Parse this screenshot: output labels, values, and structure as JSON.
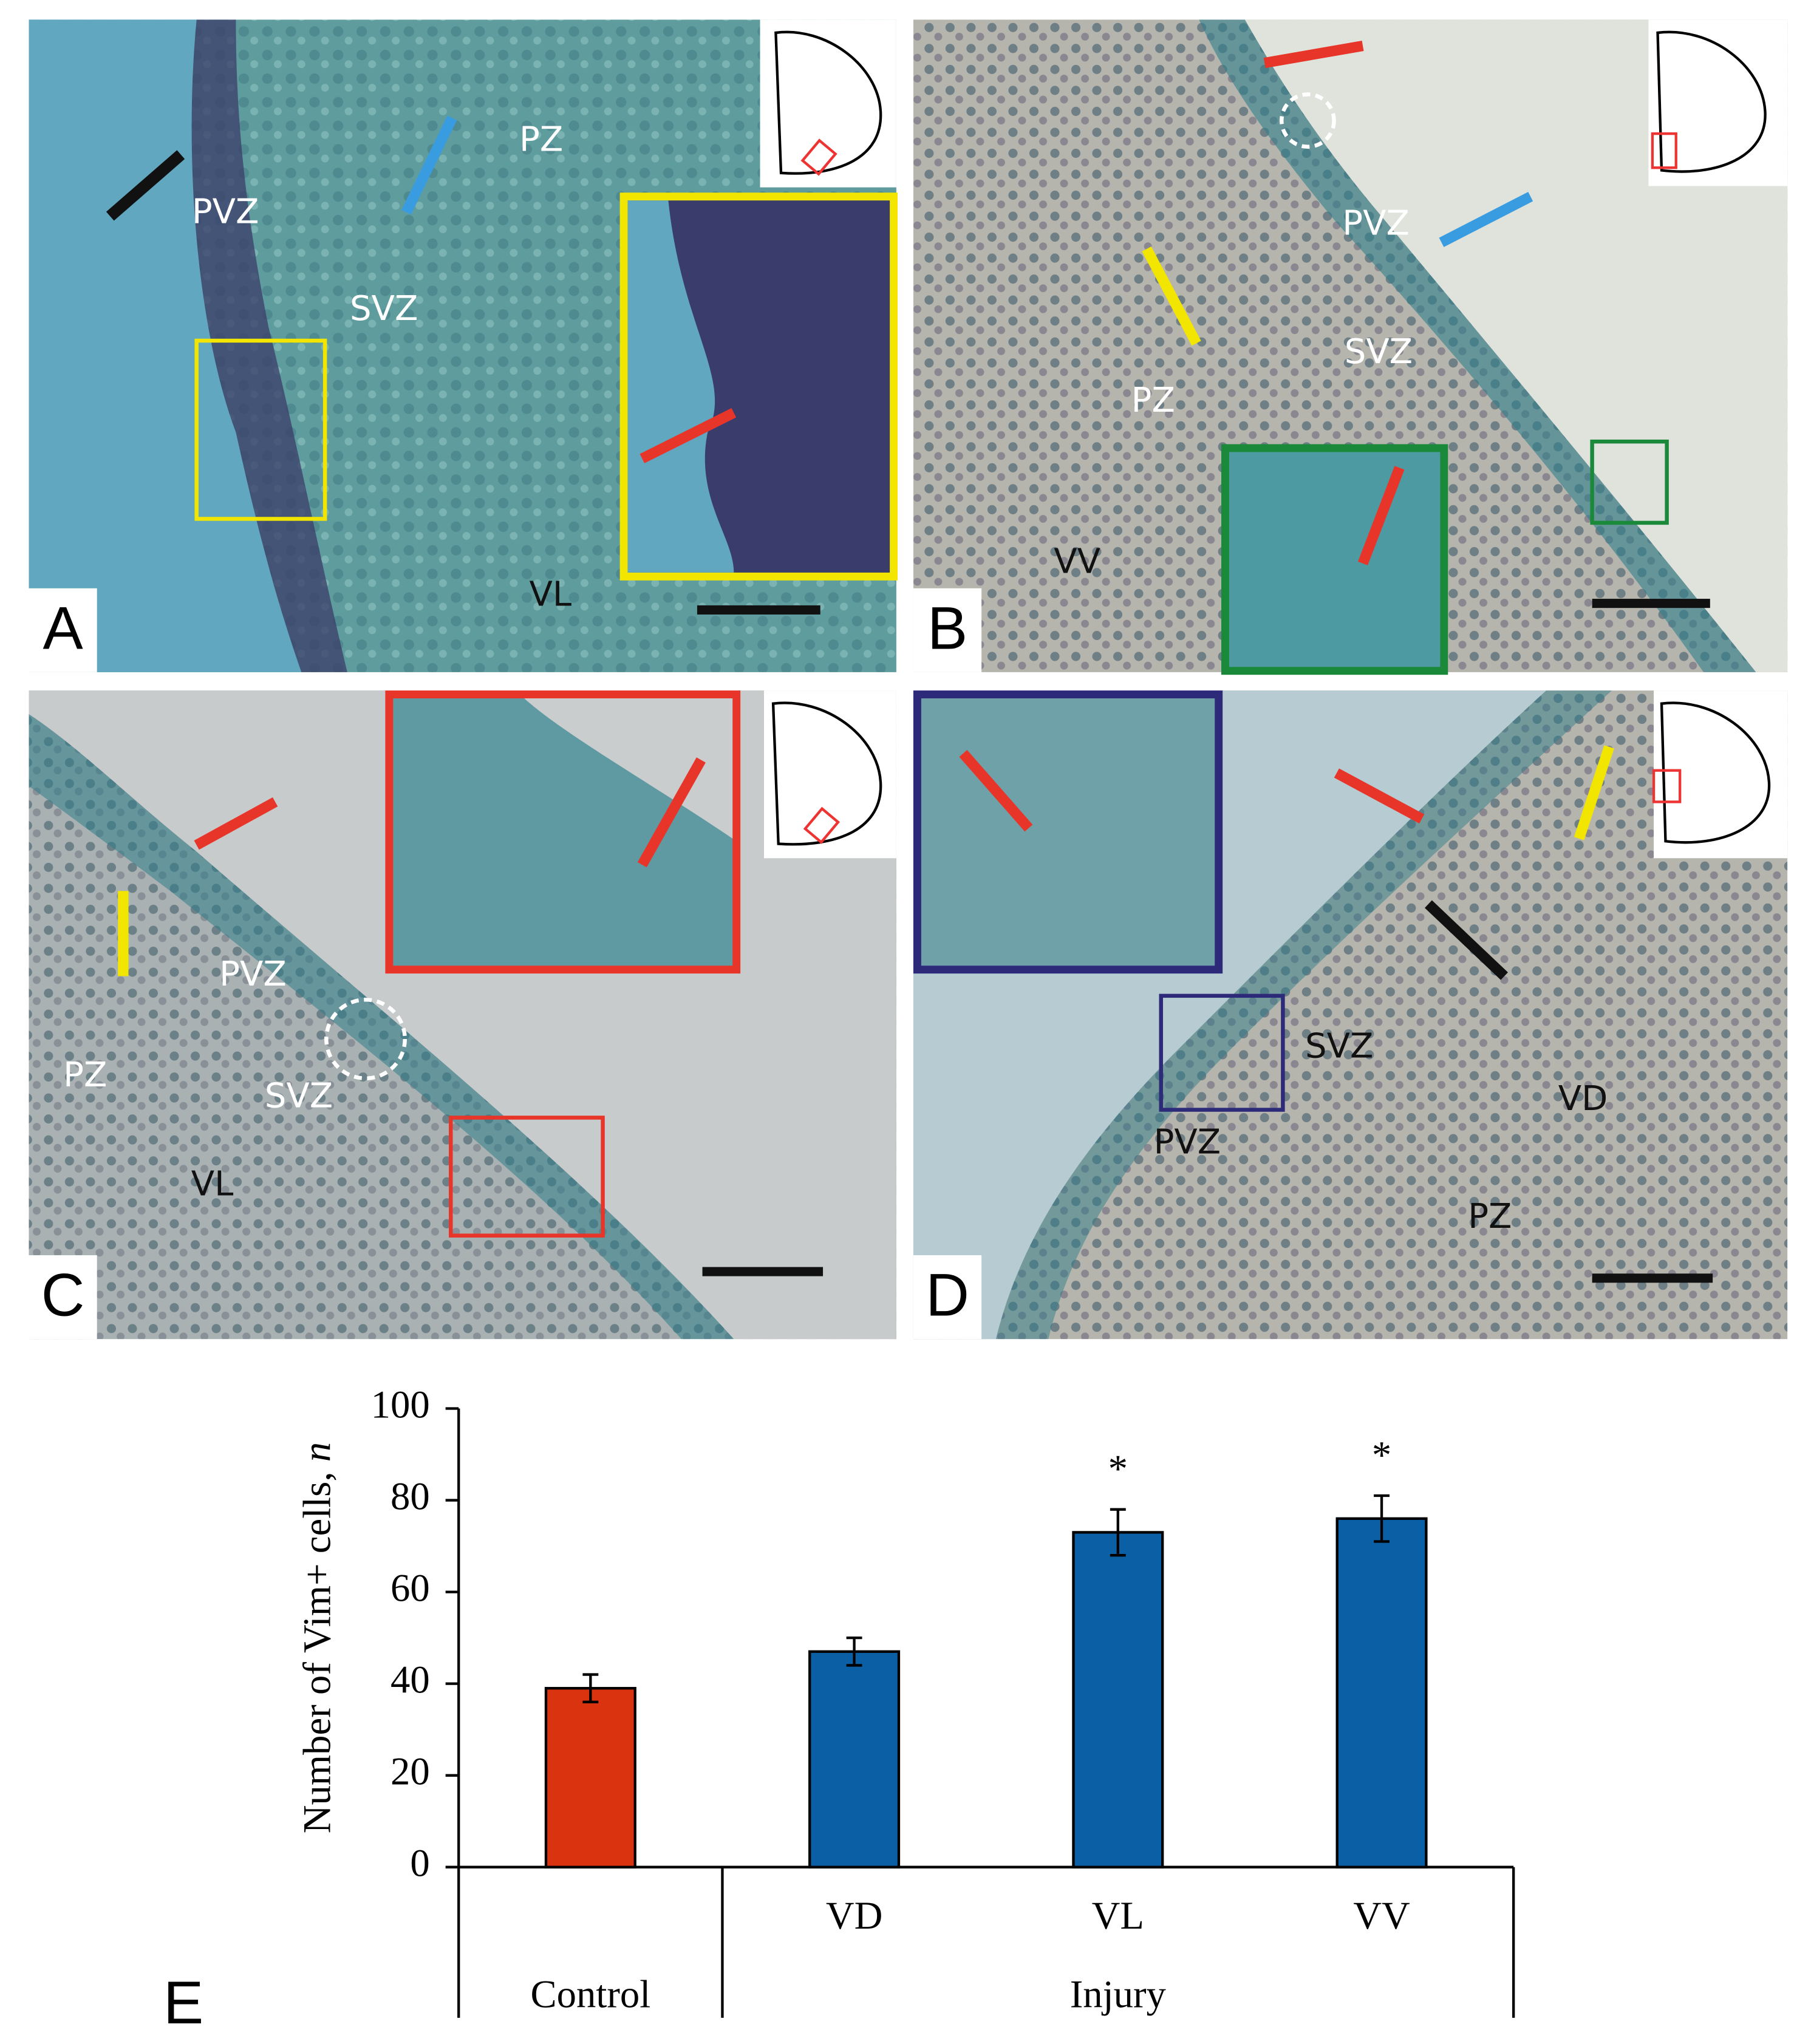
{
  "panels": [
    {
      "letter": "A",
      "labels": [
        "PVZ",
        "PZ",
        "SVZ",
        "VL"
      ]
    },
    {
      "letter": "B",
      "labels": [
        "PVZ",
        "SVZ",
        "PZ",
        "VV"
      ]
    },
    {
      "letter": "C",
      "labels": [
        "PVZ",
        "PZ",
        "SVZ",
        "VL"
      ]
    },
    {
      "letter": "D",
      "labels": [
        "SVZ",
        "VD",
        "PVZ",
        "PZ"
      ]
    }
  ],
  "chart_data": {
    "type": "bar",
    "panel": "E",
    "ylabel": [
      "Number of Vim+ cells,",
      "n"
    ],
    "categories": [
      null,
      "VD",
      "VL",
      "VV"
    ],
    "groups": [
      {
        "name": "Control",
        "count": 1
      },
      {
        "name": "Injury",
        "count": 3
      }
    ],
    "values": [
      39,
      47,
      73,
      76
    ],
    "errors": [
      3,
      3,
      5,
      5
    ],
    "significance": [
      null,
      null,
      "*",
      "*"
    ],
    "colors": [
      "#d9340f",
      "#0b5fa5",
      "#0b5fa5",
      "#0b5fa5"
    ],
    "ylim": [
      0,
      100
    ],
    "yticks": [
      0,
      20,
      40,
      60,
      80,
      100
    ]
  }
}
